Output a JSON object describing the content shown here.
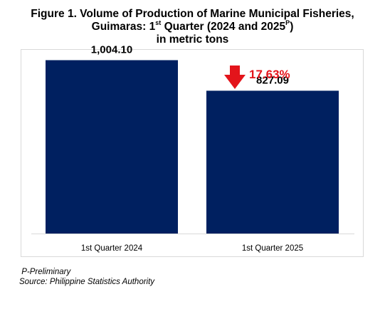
{
  "title": {
    "line1": "Figure 1. Volume of Production of Marine Municipal Fisheries,",
    "line2_a": "Guimaras: 1",
    "line2_sup1": "st",
    "line2_b": " Quarter (2024 and 2025",
    "line2_sup2": "P",
    "line2_c": ")",
    "line3": "in metric tons"
  },
  "chart_data": {
    "type": "bar",
    "categories": [
      "1st Quarter 2024",
      "1st Quarter 2025"
    ],
    "values": [
      1004.1,
      827.09
    ],
    "value_labels": [
      "1,004.10",
      "827.09"
    ],
    "ylim": [
      0,
      1200
    ],
    "grid": false,
    "bar_color": "#002060",
    "annotation": {
      "text": "17.63%",
      "direction": "down",
      "color": "#e3141b"
    }
  },
  "notes": {
    "preliminary": " P-Preliminary",
    "source": "Source: Philippine Statistics Authority"
  }
}
